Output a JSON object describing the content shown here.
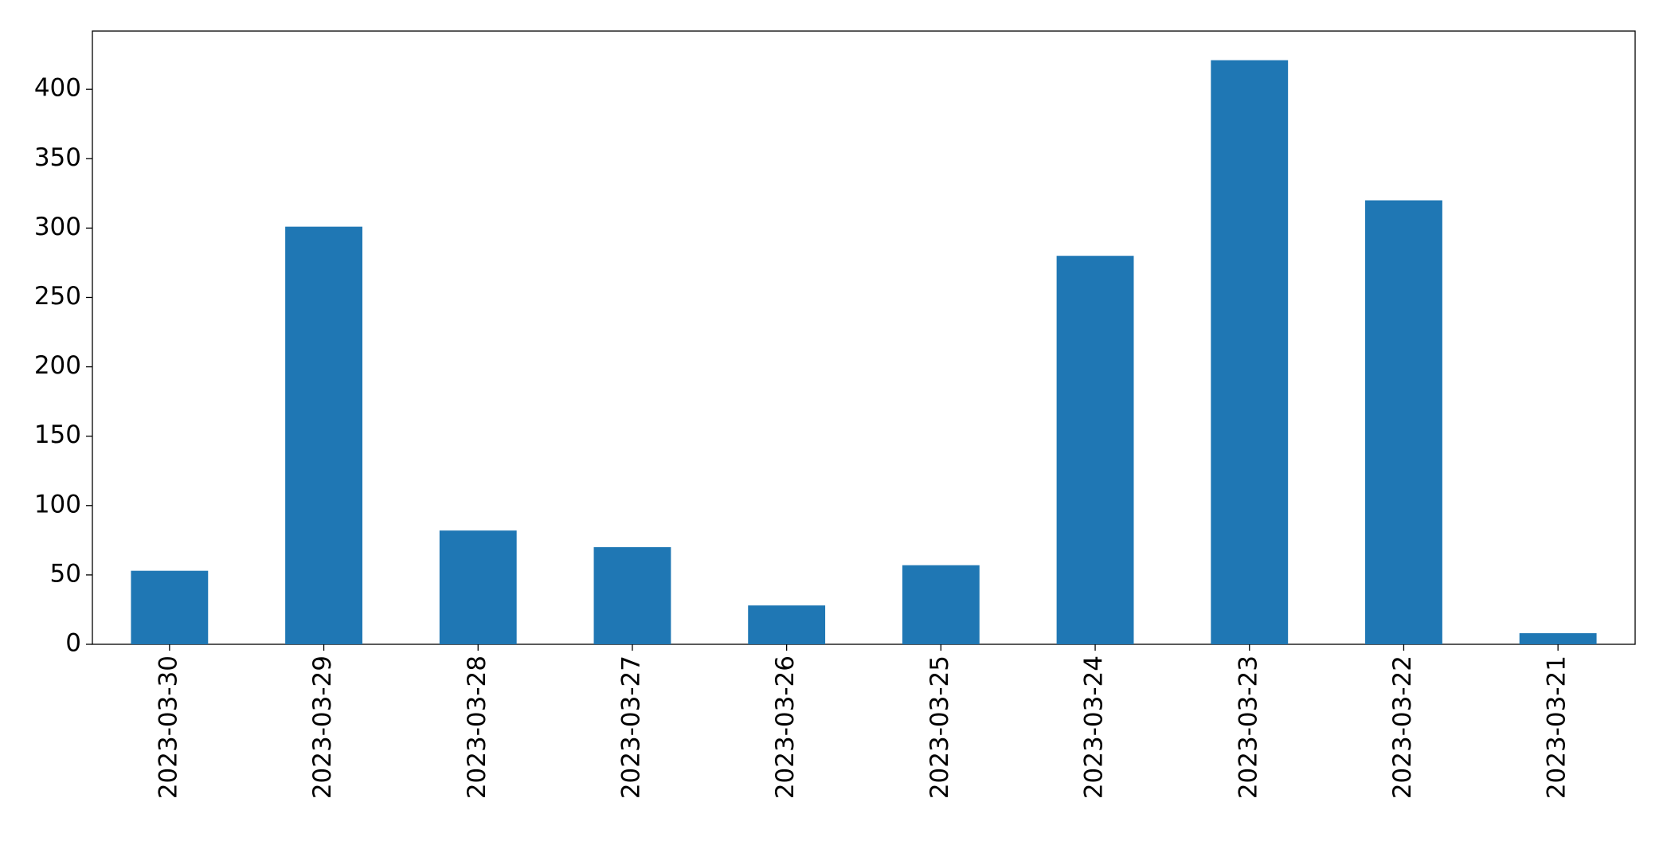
{
  "chart_data": {
    "type": "bar",
    "categories": [
      "2023-03-30",
      "2023-03-29",
      "2023-03-28",
      "2023-03-27",
      "2023-03-26",
      "2023-03-25",
      "2023-03-24",
      "2023-03-23",
      "2023-03-22",
      "2023-03-21"
    ],
    "values": [
      53,
      301,
      82,
      70,
      28,
      57,
      280,
      421,
      320,
      8
    ],
    "color": "#1f77b4",
    "ylim": [
      0,
      442
    ],
    "yticks": [
      0,
      50,
      100,
      150,
      200,
      250,
      300,
      350,
      400
    ],
    "grid": false
  }
}
